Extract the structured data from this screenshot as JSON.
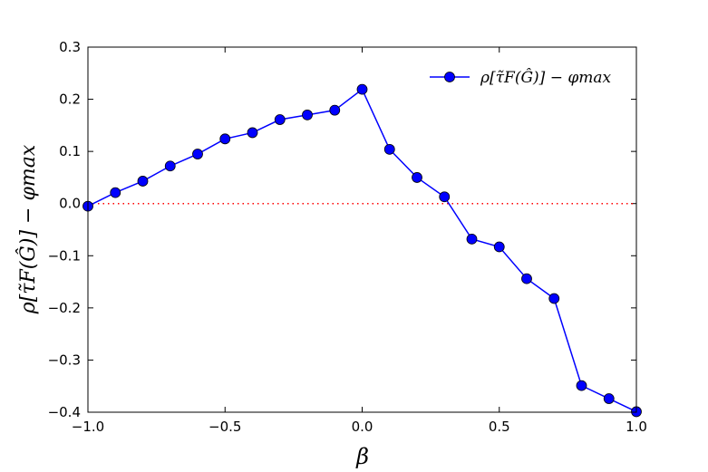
{
  "chart_data": {
    "type": "line",
    "xlabel": "β",
    "ylabel": "ρ[τ̃F(Ĝ)] − φmax",
    "xlim": [
      -1.0,
      1.0
    ],
    "ylim": [
      -0.4,
      0.3
    ],
    "xticks": [
      "−1.0",
      "−0.5",
      "0.0",
      "0.5",
      "1.0"
    ],
    "yticks": [
      "−0.4",
      "−0.3",
      "−0.2",
      "−0.1",
      "0.0",
      "0.1",
      "0.2",
      "0.3"
    ],
    "grid": false,
    "legend_position": "top-right",
    "reference_line": {
      "y": 0.0,
      "color": "#ff0000",
      "style": "dotted"
    },
    "series": [
      {
        "name": "ρ[τ̃F(Ĝ)] − φmax",
        "color": "#0000ff",
        "marker": "circle",
        "x": [
          -1.0,
          -0.9,
          -0.8,
          -0.7,
          -0.6,
          -0.5,
          -0.4,
          -0.3,
          -0.2,
          -0.1,
          0.0,
          0.1,
          0.2,
          0.3,
          0.4,
          0.5,
          0.6,
          0.7,
          0.8,
          0.9,
          1.0
        ],
        "y": [
          -0.005,
          0.021,
          0.043,
          0.072,
          0.095,
          0.124,
          0.136,
          0.161,
          0.17,
          0.179,
          0.219,
          0.104,
          0.05,
          0.013,
          -0.068,
          -0.083,
          -0.144,
          -0.182,
          -0.349,
          -0.374,
          -0.399
        ]
      }
    ]
  }
}
